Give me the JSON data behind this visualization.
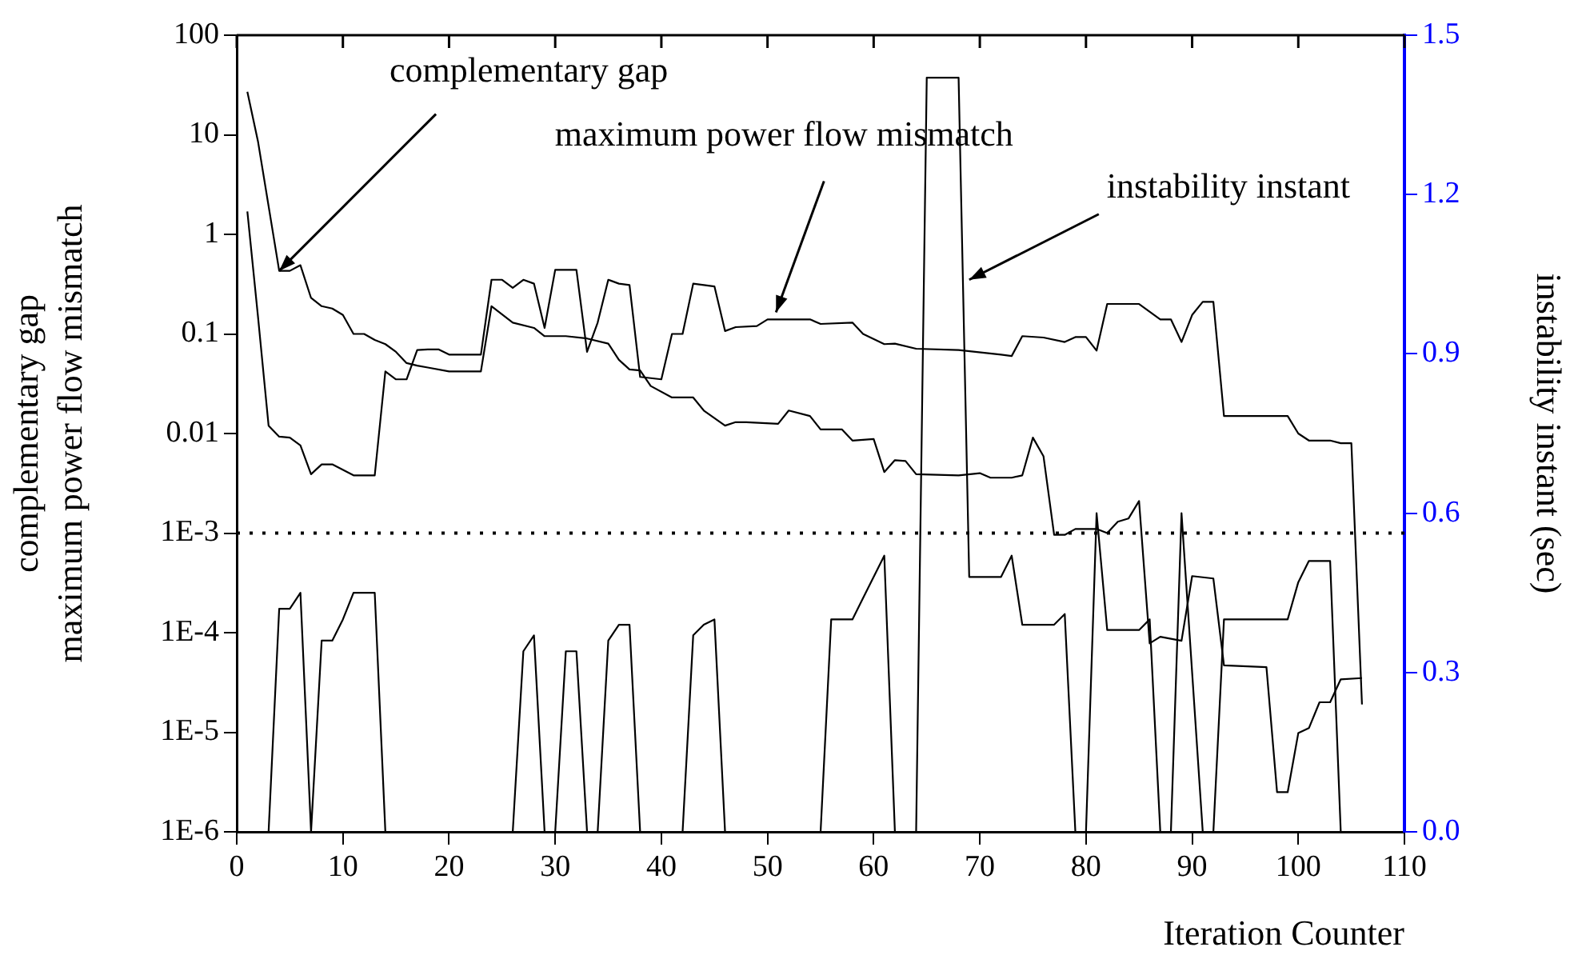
{
  "chart_data": {
    "type": "line",
    "xlabel": "Iteration Counter",
    "ylabel": "complementary gap\nmaximum power flow mismatch",
    "y2label": "instability instant (sec)",
    "xlim": [
      0,
      110
    ],
    "xticks": [
      0,
      10,
      20,
      30,
      40,
      50,
      60,
      70,
      80,
      90,
      100,
      110
    ],
    "ylim": [
      1e-06,
      100
    ],
    "yticks": [
      {
        "value": 1e-06,
        "label": "1E-6"
      },
      {
        "value": 1e-05,
        "label": "1E-5"
      },
      {
        "value": 0.0001,
        "label": "1E-4"
      },
      {
        "value": 0.001,
        "label": "1E-3"
      },
      0.01,
      0.1,
      1,
      10,
      100
    ],
    "y2lim": [
      0,
      1.5
    ],
    "y2ticks": [
      {
        "value": 0,
        "label": "0.0"
      },
      0.3,
      0.6,
      0.9,
      1.2,
      1.5
    ],
    "log": "y",
    "grid": false,
    "legend": false,
    "series": [
      {
        "color": "#000000",
        "x": [
          1,
          2,
          4,
          5,
          6,
          7,
          8,
          9,
          10,
          11,
          12,
          13,
          14,
          15,
          16,
          17,
          18,
          20,
          23,
          24,
          26,
          28,
          29,
          31,
          33,
          35,
          36,
          37,
          38,
          39,
          41,
          43,
          44,
          46,
          47,
          48,
          51,
          52,
          54,
          55,
          57,
          58,
          60,
          61,
          62,
          63,
          64,
          68,
          70,
          71,
          73,
          74,
          75,
          76,
          77,
          78,
          79,
          81,
          82,
          83,
          84,
          85,
          86,
          87,
          89,
          90,
          92,
          93,
          97,
          98,
          99,
          100,
          101,
          102,
          103,
          104,
          106
        ],
        "values": [
          27,
          8.6,
          0.43,
          0.43,
          0.49,
          0.23,
          0.19,
          0.18,
          0.155,
          0.1,
          0.1,
          0.087,
          0.079,
          0.066,
          0.051,
          0.048,
          0.046,
          0.042,
          0.042,
          0.19,
          0.13,
          0.115,
          0.095,
          0.095,
          0.09,
          0.08,
          0.055,
          0.044,
          0.043,
          0.03,
          0.023,
          0.023,
          0.017,
          0.012,
          0.013,
          0.013,
          0.0125,
          0.017,
          0.015,
          0.011,
          0.011,
          0.0085,
          0.0088,
          0.0041,
          0.0054,
          0.0053,
          0.0039,
          0.0038,
          0.004,
          0.0036,
          0.0036,
          0.0038,
          0.0091,
          0.0059,
          0.00096,
          0.00096,
          0.0011,
          0.0011,
          0.001,
          0.0013,
          0.0014,
          0.0021,
          7.8e-05,
          9.1e-05,
          8.3e-05,
          0.00037,
          0.00035,
          4.7e-05,
          4.5e-05,
          2.5e-06,
          2.5e-06,
          9.8e-06,
          1.1e-05,
          2e-05,
          2e-05,
          3.4e-05,
          3.5e-05
        ]
      },
      {
        "color": "#000000",
        "x": [
          1,
          2,
          3,
          4,
          5,
          6,
          7,
          8,
          9,
          11,
          13,
          14,
          15,
          16,
          17,
          18,
          19,
          20,
          23,
          24,
          25,
          26,
          27,
          28,
          29,
          30,
          32,
          33,
          34,
          35,
          36,
          37,
          38,
          40,
          41,
          42,
          43,
          45,
          46,
          47,
          49,
          50,
          54,
          55,
          58,
          59,
          61,
          62,
          64,
          68,
          72,
          73,
          74,
          76,
          78,
          79,
          80,
          81,
          82,
          85,
          87,
          88,
          89,
          90,
          91,
          92,
          93,
          99,
          100,
          101,
          103,
          104,
          105,
          106
        ],
        "values": [
          1.7,
          0.15,
          0.012,
          0.0093,
          0.0091,
          0.0076,
          0.0039,
          0.0049,
          0.0049,
          0.0038,
          0.0038,
          0.042,
          0.035,
          0.035,
          0.069,
          0.07,
          0.07,
          0.062,
          0.062,
          0.35,
          0.35,
          0.29,
          0.35,
          0.32,
          0.115,
          0.44,
          0.44,
          0.066,
          0.13,
          0.35,
          0.32,
          0.31,
          0.037,
          0.035,
          0.1,
          0.1,
          0.32,
          0.3,
          0.107,
          0.117,
          0.12,
          0.14,
          0.14,
          0.126,
          0.13,
          0.1,
          0.079,
          0.08,
          0.071,
          0.069,
          0.062,
          0.06,
          0.095,
          0.092,
          0.083,
          0.093,
          0.093,
          0.068,
          0.2,
          0.2,
          0.14,
          0.14,
          0.083,
          0.155,
          0.21,
          0.21,
          0.015,
          0.015,
          0.01,
          0.0085,
          0.0085,
          0.008,
          0.008,
          1.9e-05
        ]
      },
      {
        "color": "#000000",
        "axis": "y2",
        "x": [
          1,
          3,
          4,
          5,
          6,
          7,
          8,
          9,
          10,
          11,
          13,
          14,
          26,
          27,
          28,
          29,
          30,
          31,
          32,
          33,
          34,
          35,
          36,
          37,
          38,
          42,
          43,
          44,
          45,
          46,
          55,
          56,
          58,
          59,
          61,
          62,
          64,
          65,
          68,
          69,
          72,
          73,
          74,
          77,
          78,
          79,
          80,
          81,
          82,
          85,
          86,
          87,
          88,
          89,
          91,
          92,
          93,
          99,
          100,
          101,
          103,
          104
        ],
        "values": [
          0,
          0,
          0.42,
          0.42,
          0.45,
          0,
          0.36,
          0.36,
          0.4,
          0.45,
          0.45,
          0,
          0,
          0.34,
          0.37,
          0,
          0,
          0.34,
          0.34,
          0,
          0,
          0.36,
          0.39,
          0.39,
          0,
          0,
          0.37,
          0.39,
          0.4,
          0,
          0,
          0.4,
          0.4,
          0.44,
          0.52,
          0,
          0,
          1.42,
          1.42,
          0.48,
          0.48,
          0.52,
          0.39,
          0.39,
          0.41,
          0,
          0,
          0.6,
          0.38,
          0.38,
          0.4,
          0,
          0,
          0.6,
          0,
          0,
          0.4,
          0.4,
          0.47,
          0.51,
          0.51,
          0
        ]
      }
    ],
    "ref_lines": [
      {
        "axis": "y",
        "value": 0.001,
        "color": "#000000",
        "line_style": "dotted"
      }
    ],
    "annotations": [
      {
        "text": "complementary gap",
        "x": 4,
        "y": 0.43
      },
      {
        "text": "maximum power flow mismatch",
        "x": 50.8,
        "y": 0.165
      },
      {
        "text": "instability instant",
        "x": 69,
        "y": 0.35
      }
    ]
  }
}
